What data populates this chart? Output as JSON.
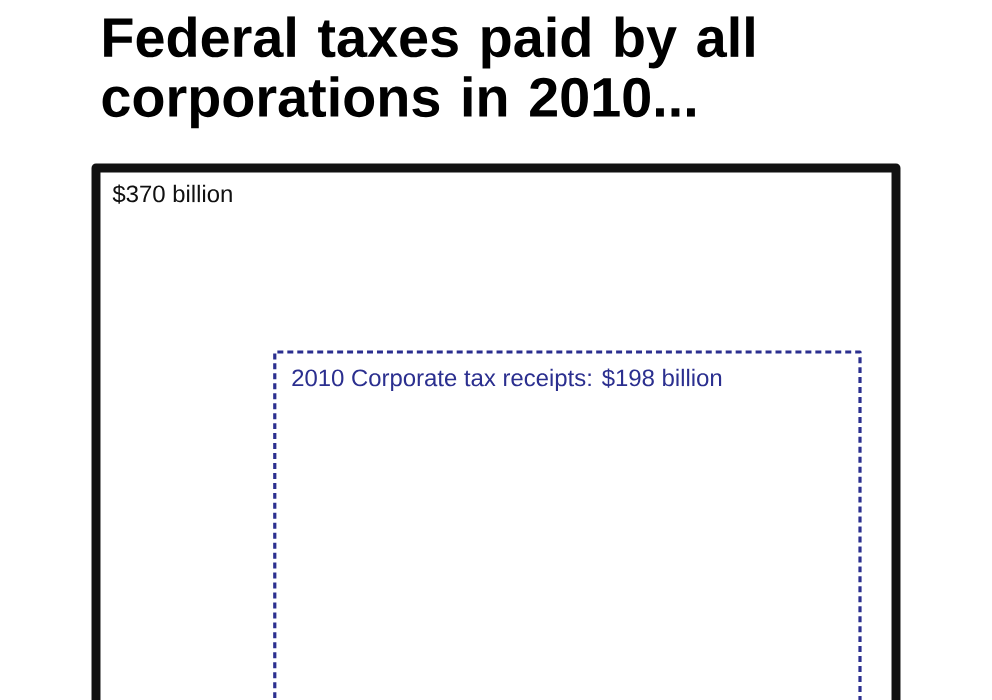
{
  "chart_data": {
    "type": "other",
    "title": "Federal taxes paid by all corporations in 2010...",
    "values": [
      370,
      198
    ],
    "categories": [
      null,
      "2010 Corporate tax receipts"
    ],
    "value_labels": [
      "$370 billion",
      ": $198 billion"
    ],
    "colors": [
      "#111111",
      "#2b2f8f"
    ]
  }
}
